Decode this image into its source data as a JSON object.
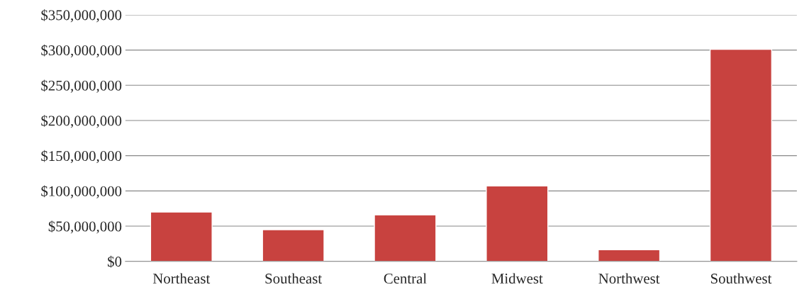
{
  "chart_data": {
    "type": "bar",
    "categories": [
      "Northeast",
      "Southeast",
      "Central",
      "Midwest",
      "Northwest",
      "Southwest"
    ],
    "values": [
      70000000,
      45000000,
      66000000,
      107000000,
      16500000,
      301000000
    ],
    "color": "#c8423f",
    "ylim": [
      0,
      350000000
    ],
    "yticks": [
      {
        "value": 0,
        "label": "$0"
      },
      {
        "value": 50000000,
        "label": "$50,000,000"
      },
      {
        "value": 100000000,
        "label": "$100,000,000"
      },
      {
        "value": 150000000,
        "label": "$150,000,000"
      },
      {
        "value": 200000000,
        "label": "$200,000,000"
      },
      {
        "value": 250000000,
        "label": "$250,000,000"
      },
      {
        "value": 300000000,
        "label": "$300,000,000"
      },
      {
        "value": 350000000,
        "label": "$350,000,000"
      }
    ],
    "grid": "y"
  }
}
